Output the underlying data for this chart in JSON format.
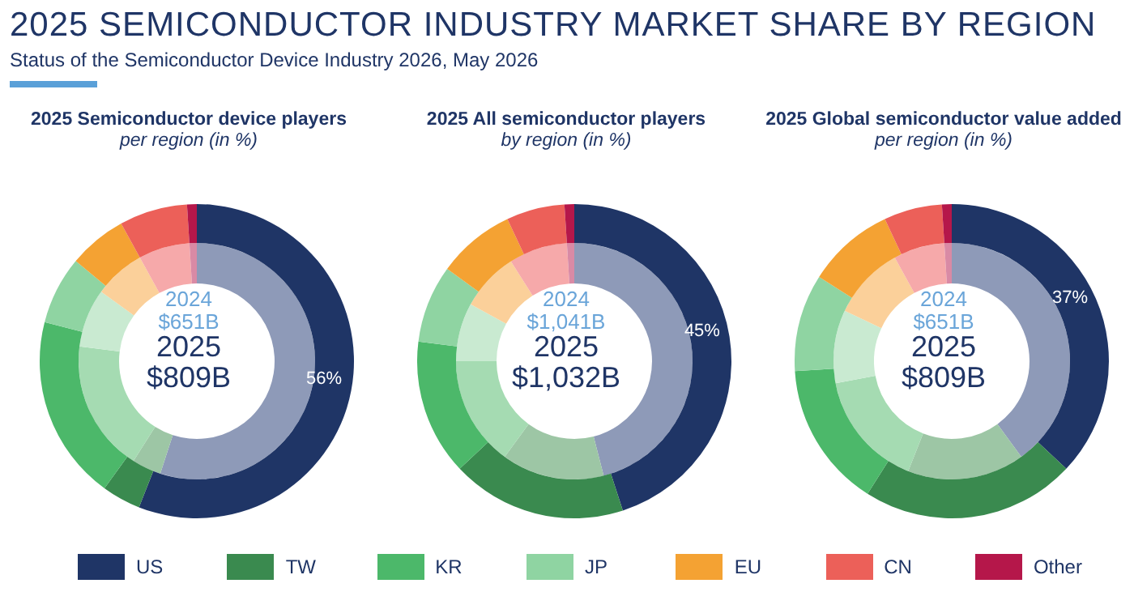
{
  "chart_data": [
    {
      "type": "other",
      "title": "2025 SEMICONDUCTOR INDUSTRY MARKET SHARE BY REGION",
      "subtitle": "Status of the Semiconductor Device Industry 2026, May 2026"
    },
    {
      "type": "donut",
      "title": "2025 Semiconductor device players",
      "subtitle": "per region (in %)",
      "categories": [
        "US",
        "TW",
        "KR",
        "JP",
        "EU",
        "CN",
        "Other"
      ],
      "legend": "bottom",
      "annotations": [
        "2024",
        "$651B",
        "2025",
        "$809B"
      ],
      "series": [
        {
          "colors": [
            "#8e9ab8",
            "#9dc6a5",
            "#a5dbb2",
            "#c9ead1",
            "#fbd09a",
            "#f6a9aa",
            "#d98aa5"
          ],
          "values": [
            55,
            4,
            18,
            8,
            7,
            7,
            1
          ]
        },
        {
          "colors": [
            "#1f3566",
            "#3a8a4f",
            "#4cb86a",
            "#8fd4a2",
            "#f4a233",
            "#ec6059",
            "#b5174a"
          ],
          "values": [
            56,
            4,
            19,
            7,
            6,
            7,
            1
          ],
          "value_labels": [
            "56%",
            null,
            null,
            null,
            null,
            null,
            null
          ]
        }
      ]
    },
    {
      "type": "donut",
      "title": "2025 All semiconductor players",
      "subtitle": "by region (in %)",
      "annotations": [
        "2024",
        "$1,041B",
        "2025",
        "$1,032B"
      ],
      "series": [
        {
          "colors": [
            "#8e9ab8",
            "#9dc6a5",
            "#a5dbb2",
            "#c9ead1",
            "#fbd09a",
            "#f6a9aa",
            "#d98aa5"
          ],
          "values": [
            46,
            14,
            15,
            8,
            8,
            8,
            1
          ]
        },
        {
          "colors": [
            "#1f3566",
            "#3a8a4f",
            "#4cb86a",
            "#8fd4a2",
            "#f4a233",
            "#ec6059",
            "#b5174a"
          ],
          "values": [
            45,
            18,
            14,
            8,
            8,
            6,
            1
          ],
          "value_labels": [
            "45%",
            null,
            null,
            null,
            null,
            null,
            null
          ]
        }
      ]
    },
    {
      "type": "donut",
      "title": "2025 Global semiconductor value added",
      "subtitle": "per region (in %)",
      "annotations": [
        "2024",
        "$651B",
        "2025",
        "$809B"
      ],
      "series": [
        {
          "colors": [
            "#8e9ab8",
            "#9dc6a5",
            "#a5dbb2",
            "#c9ead1",
            "#fbd09a",
            "#f6a9aa",
            "#d98aa5"
          ],
          "values": [
            40,
            16,
            16,
            10,
            10,
            7,
            1
          ]
        },
        {
          "colors": [
            "#1f3566",
            "#3a8a4f",
            "#4cb86a",
            "#8fd4a2",
            "#f4a233",
            "#ec6059",
            "#b5174a"
          ],
          "values": [
            37,
            22,
            15,
            10,
            9,
            6,
            1
          ],
          "value_labels": [
            "37%",
            null,
            null,
            null,
            null,
            null,
            null
          ]
        }
      ]
    }
  ]
}
